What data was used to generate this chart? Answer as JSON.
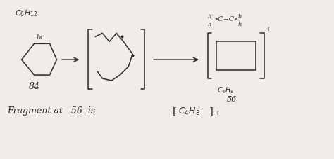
{
  "bg_color": "#f0ede8",
  "ink_color": "#2a2a2a",
  "fig_width": 4.74,
  "fig_height": 2.27,
  "dpi": 100,
  "xlim": [
    0,
    47.4
  ],
  "ylim": [
    0,
    22.7
  ]
}
